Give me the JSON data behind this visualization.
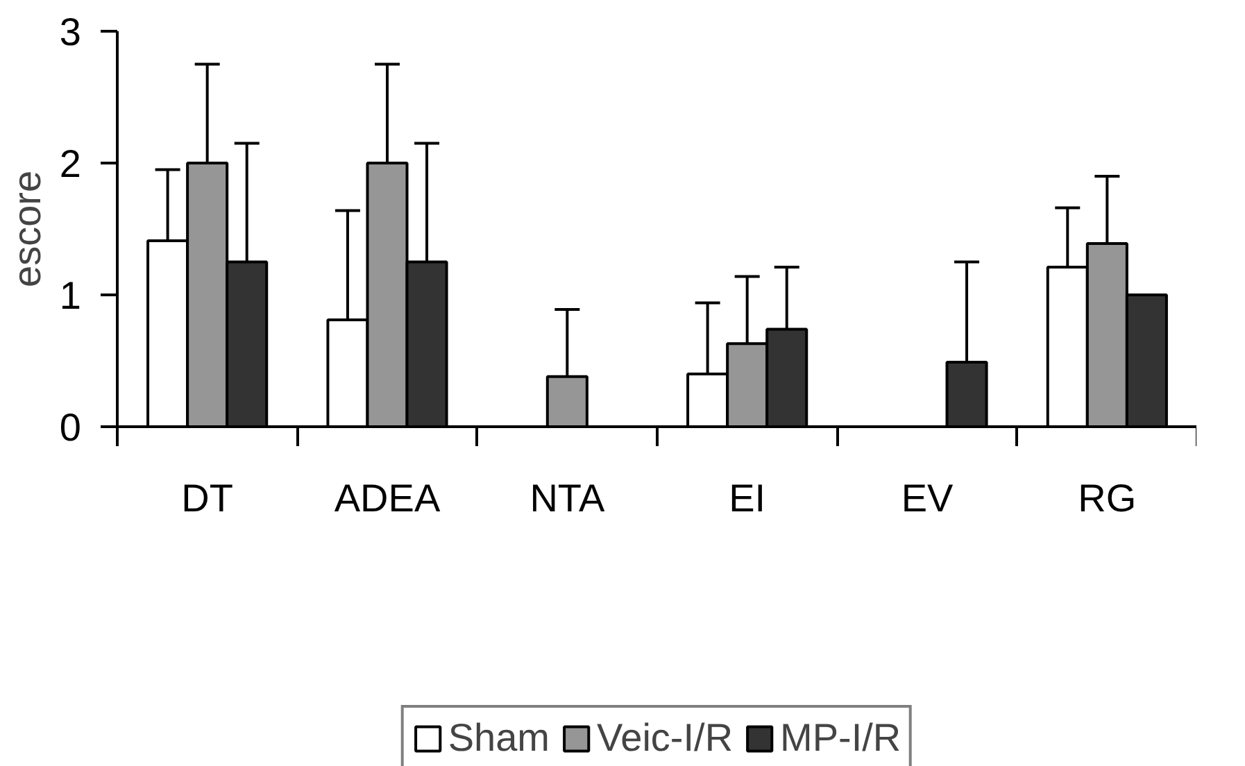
{
  "chart_data": {
    "type": "bar",
    "ylabel": "escore",
    "categories": [
      "DT",
      "ADEA",
      "NTA",
      "EI",
      "EV",
      "RG"
    ],
    "series": [
      {
        "name": "Sham",
        "color": "#ffffff",
        "values": [
          1.41,
          0.81,
          0,
          0.4,
          0,
          1.21
        ],
        "errors": [
          [
            1.41,
            1.95
          ],
          [
            0.81,
            1.64
          ],
          null,
          [
            0.4,
            0.94
          ],
          null,
          [
            1.21,
            1.66
          ]
        ]
      },
      {
        "name": "Veic-I/R",
        "color": "#969696",
        "values": [
          2.0,
          2.0,
          0.38,
          0.63,
          0,
          1.39
        ],
        "errors": [
          [
            2.0,
            2.75
          ],
          [
            2.0,
            2.75
          ],
          [
            0.38,
            0.89
          ],
          [
            0.63,
            1.14
          ],
          null,
          [
            1.39,
            1.9
          ]
        ]
      },
      {
        "name": "MP-I/R",
        "color": "#333333",
        "values": [
          1.25,
          1.25,
          0,
          0.74,
          0.49,
          1.0
        ],
        "errors": [
          [
            1.25,
            2.15
          ],
          [
            1.25,
            2.15
          ],
          null,
          [
            0.74,
            1.21
          ],
          [
            0.49,
            1.25
          ],
          null
        ]
      }
    ],
    "ylim": [
      0,
      3
    ],
    "yticks": [
      0,
      1,
      2,
      3
    ],
    "grid": false,
    "legend": "bottom"
  }
}
